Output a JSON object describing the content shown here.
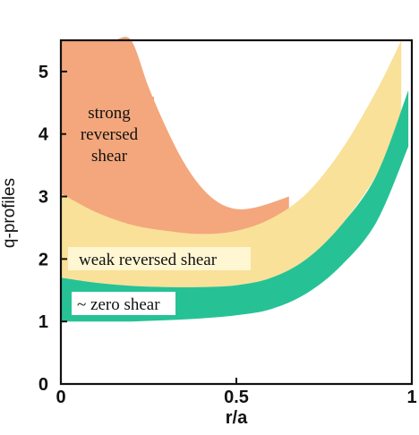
{
  "chart_data": {
    "type": "area",
    "xlabel": "r/a",
    "ylabel": "q-profiles",
    "xlim": [
      0,
      1
    ],
    "ylim": [
      0,
      5.5
    ],
    "x_ticks": [
      "0",
      "0.5",
      "1"
    ],
    "y_ticks": [
      "0",
      "1",
      "2",
      "3",
      "4",
      "5"
    ],
    "bands": [
      {
        "name": "strong reversed shear",
        "color": "#f4a77c",
        "x": [
          0,
          0.05,
          0.1,
          0.15,
          0.2,
          0.25,
          0.3,
          0.35,
          0.4,
          0.45,
          0.5,
          0.55,
          0.6,
          0.65
        ],
        "upper": [
          5.5,
          5.5,
          5.5,
          5.5,
          5.5,
          4.75,
          4.1,
          3.55,
          3.15,
          2.9,
          2.8,
          2.82,
          2.9,
          3.0
        ],
        "lower": [
          3.05,
          2.85,
          2.7,
          2.6,
          2.5,
          2.45,
          2.42,
          2.4,
          2.38,
          2.38,
          2.4,
          2.45,
          2.55,
          2.75
        ]
      },
      {
        "name": "weak reversed shear",
        "color": "#f9e199",
        "x": [
          0,
          0.1,
          0.2,
          0.3,
          0.4,
          0.5,
          0.6,
          0.7,
          0.8,
          0.9,
          0.97
        ],
        "upper": [
          3.05,
          2.75,
          2.55,
          2.45,
          2.4,
          2.45,
          2.65,
          3.05,
          3.75,
          4.7,
          5.5
        ],
        "lower": [
          1.7,
          1.62,
          1.57,
          1.55,
          1.55,
          1.58,
          1.7,
          2.0,
          2.55,
          3.35,
          4.2
        ]
      },
      {
        "name": "~ zero shear",
        "color": "#26c295",
        "x": [
          0,
          0.1,
          0.2,
          0.3,
          0.4,
          0.5,
          0.6,
          0.7,
          0.8,
          0.9,
          0.99
        ],
        "upper": [
          1.7,
          1.62,
          1.57,
          1.55,
          1.55,
          1.58,
          1.7,
          2.0,
          2.55,
          3.35,
          4.7
        ],
        "lower": [
          1.0,
          1.0,
          1.0,
          1.02,
          1.05,
          1.1,
          1.2,
          1.45,
          1.9,
          2.6,
          3.8
        ]
      }
    ],
    "annotations": {
      "strong": [
        "strong",
        "reversed",
        "shear"
      ],
      "weak": "weak reversed shear",
      "zero": "~ zero shear"
    }
  }
}
